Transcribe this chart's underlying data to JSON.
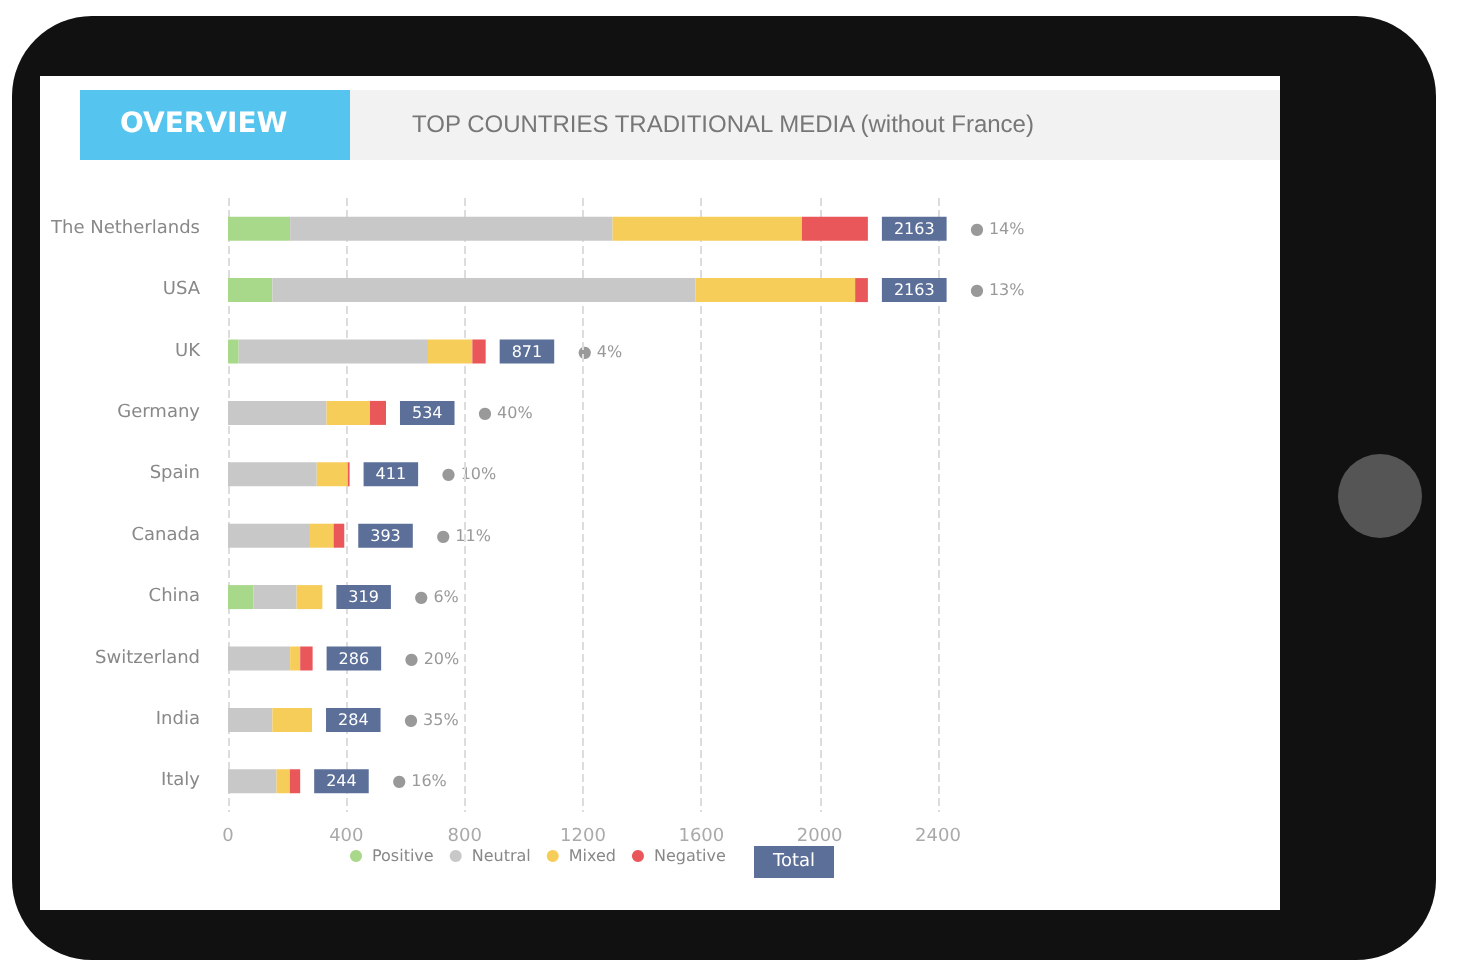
{
  "chart_data": {
    "type": "bar",
    "orientation": "horizontal",
    "stacked": true,
    "title": "OVERVIEW",
    "subtitle": "TOP COUNTRIES TRADITIONAL MEDIA (without France)",
    "categories": [
      "The Netherlands",
      "USA",
      "UK",
      "Germany",
      "Spain",
      "Canada",
      "China",
      "Switzerland",
      "India",
      "Italy"
    ],
    "series": [
      {
        "name": "Positive",
        "color": "#a8d88a",
        "values": [
          210,
          150,
          36,
          0,
          0,
          0,
          86,
          0,
          0,
          0
        ]
      },
      {
        "name": "Neutral",
        "color": "#c8c8c8",
        "values": [
          1090,
          1430,
          640,
          333,
          300,
          277,
          146,
          210,
          150,
          164
        ]
      },
      {
        "name": "Mixed",
        "color": "#f7cd5a",
        "values": [
          640,
          540,
          150,
          147,
          105,
          80,
          87,
          34,
          134,
          45
        ]
      },
      {
        "name": "Negative",
        "color": "#e9575a",
        "values": [
          223,
          43,
          45,
          54,
          6,
          36,
          0,
          42,
          0,
          35
        ]
      }
    ],
    "totals": [
      "2163",
      "2163",
      "871",
      "534",
      "411",
      "393",
      "319",
      "286",
      "284",
      "244"
    ],
    "xlim": [
      0,
      2400
    ],
    "xticks": [
      0,
      400,
      800,
      1200,
      1600,
      2000,
      2400
    ],
    "grid": "x",
    "legend": "bottom",
    "annotations": [
      "Total",
      "● 14%",
      "● 13%",
      "● 4%",
      "● 40%",
      "● 10%",
      "● 11%",
      "● 6%",
      "● 20%",
      "● 35%",
      "● 16%"
    ]
  }
}
